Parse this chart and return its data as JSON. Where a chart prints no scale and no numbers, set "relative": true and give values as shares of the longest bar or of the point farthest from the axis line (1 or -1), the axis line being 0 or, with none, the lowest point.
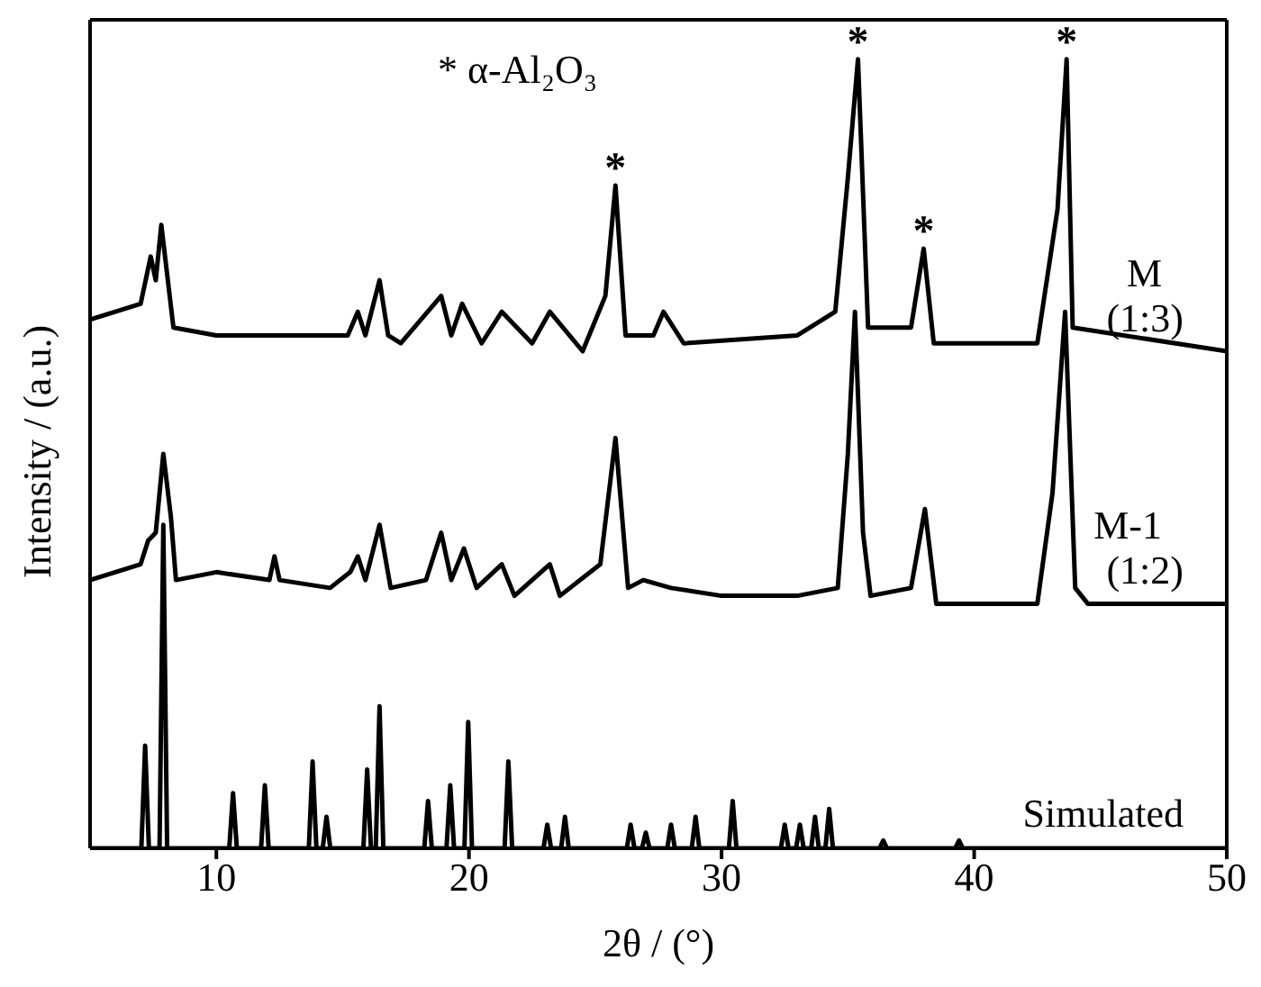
{
  "chart_data": {
    "type": "line",
    "relative": true,
    "xlabel": "2θ / (°)",
    "ylabel": "Intensity / (a.u.)",
    "xlim": [
      5,
      50
    ],
    "xticks": [
      10,
      20,
      30,
      40,
      50
    ],
    "legend": false,
    "marker": "none",
    "line_style": "solid",
    "annotations": [
      "* α-Al₂O₃",
      {
        "text": "*",
        "x": 25.8,
        "y": 0.84
      },
      {
        "text": "*",
        "x": 35.4,
        "y": 1.0
      },
      {
        "text": "*",
        "x": 38.0,
        "y": 0.76
      },
      {
        "text": "*",
        "x": 43.66,
        "y": 1.0
      }
    ],
    "series": [
      {
        "name": "M (1:3)",
        "color": "#000000",
        "x": [
          5,
          6,
          7,
          7.4,
          7.6,
          7.82,
          8.3,
          10,
          12,
          14,
          15.2,
          15.6,
          15.9,
          16.46,
          16.8,
          17.3,
          18.9,
          19.3,
          19.73,
          20.5,
          21.3,
          22.5,
          23.2,
          24.5,
          25.4,
          25.8,
          26.2,
          27.3,
          27.7,
          28.5,
          33,
          34.5,
          35.0,
          35.4,
          35.8,
          37.5,
          38.0,
          38.4,
          42.5,
          43.3,
          43.66,
          43.9,
          50
        ],
        "values": [
          0.67,
          0.68,
          0.69,
          0.75,
          0.72,
          0.79,
          0.66,
          0.65,
          0.65,
          0.65,
          0.65,
          0.68,
          0.65,
          0.72,
          0.65,
          0.64,
          0.7,
          0.65,
          0.69,
          0.64,
          0.68,
          0.64,
          0.68,
          0.63,
          0.7,
          0.84,
          0.65,
          0.65,
          0.68,
          0.64,
          0.65,
          0.68,
          0.85,
          1.0,
          0.66,
          0.66,
          0.76,
          0.64,
          0.64,
          0.81,
          1.0,
          0.66,
          0.63
        ]
      },
      {
        "name": "M-1 (1:2)",
        "color": "#000000",
        "x": [
          5,
          6,
          7,
          7.3,
          7.6,
          7.9,
          8.2,
          8.4,
          10,
          12.1,
          12.3,
          12.5,
          14.5,
          15.3,
          15.6,
          15.9,
          16.46,
          16.9,
          18.3,
          18.9,
          19.3,
          19.8,
          20.3,
          21.3,
          21.8,
          23.2,
          23.6,
          25.2,
          25.8,
          26.3,
          26.9,
          28,
          30,
          33,
          34.6,
          35.0,
          35.28,
          35.6,
          35.9,
          37.5,
          38.05,
          38.5,
          42.5,
          43.1,
          43.6,
          44.0,
          44.5,
          50
        ],
        "values": [
          0.34,
          0.35,
          0.36,
          0.39,
          0.4,
          0.5,
          0.42,
          0.34,
          0.35,
          0.34,
          0.37,
          0.34,
          0.33,
          0.35,
          0.37,
          0.34,
          0.41,
          0.33,
          0.34,
          0.4,
          0.34,
          0.38,
          0.33,
          0.36,
          0.32,
          0.36,
          0.32,
          0.36,
          0.52,
          0.33,
          0.34,
          0.33,
          0.32,
          0.32,
          0.33,
          0.5,
          0.68,
          0.4,
          0.32,
          0.33,
          0.43,
          0.31,
          0.31,
          0.45,
          0.68,
          0.33,
          0.31,
          0.31
        ]
      },
      {
        "name": "Simulated",
        "color": "#000000",
        "x": [
          5,
          7.03,
          7.18,
          7.33,
          7.75,
          7.9,
          8.05,
          10.51,
          10.66,
          10.81,
          11.77,
          11.92,
          12.07,
          13.66,
          13.81,
          13.96,
          14.21,
          14.36,
          14.51,
          15.82,
          15.97,
          16.12,
          16.31,
          16.46,
          16.61,
          18.23,
          18.38,
          18.53,
          19.11,
          19.26,
          19.41,
          19.82,
          19.97,
          20.12,
          21.41,
          21.56,
          21.71,
          22.95,
          23.1,
          23.25,
          23.65,
          23.8,
          23.95,
          26.25,
          26.4,
          26.55,
          26.85,
          27.0,
          27.15,
          27.85,
          28.0,
          28.15,
          28.82,
          28.97,
          29.12,
          30.29,
          30.44,
          30.59,
          32.35,
          32.5,
          32.65,
          32.95,
          33.1,
          33.25,
          33.55,
          33.7,
          33.85,
          34.11,
          34.26,
          34.41,
          36.25,
          36.4,
          36.55,
          39.25,
          39.4,
          39.55,
          50
        ],
        "values": [
          0,
          0,
          0.13,
          0,
          0,
          0.41,
          0,
          0,
          0.07,
          0,
          0,
          0.08,
          0,
          0,
          0.11,
          0,
          0,
          0.04,
          0,
          0,
          0.1,
          0,
          0,
          0.18,
          0,
          0,
          0.06,
          0,
          0,
          0.08,
          0,
          0,
          0.16,
          0,
          0,
          0.11,
          0,
          0,
          0.03,
          0,
          0,
          0.04,
          0,
          0,
          0.03,
          0,
          0,
          0.02,
          0,
          0,
          0.03,
          0,
          0,
          0.04,
          0,
          0,
          0.06,
          0,
          0,
          0.03,
          0,
          0,
          0.03,
          0,
          0,
          0.04,
          0,
          0,
          0.05,
          0,
          0,
          0.01,
          0,
          0,
          0.01,
          0,
          0
        ]
      }
    ]
  }
}
